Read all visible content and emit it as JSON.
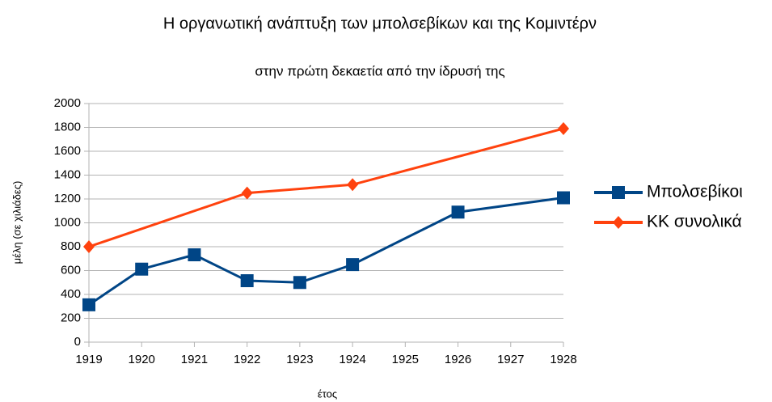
{
  "chart_data": {
    "type": "line",
    "title": "Η οργανωτική ανάπτυξη των μπολσεβίκων και της Κομιντέρν",
    "subtitle": "στην πρώτη δεκαετία από την ίδρυσή της",
    "x_label": "έτος",
    "y_label": "μέλη (σε χιλιάδες)",
    "xlim": [
      1919,
      1928
    ],
    "xticks": [
      1919,
      1920,
      1921,
      1922,
      1923,
      1924,
      1925,
      1926,
      1927,
      1928
    ],
    "ylim": [
      0,
      2000
    ],
    "yticks": [
      0,
      200,
      400,
      600,
      800,
      1000,
      1200,
      1400,
      1600,
      1800,
      2000
    ],
    "grid": true,
    "legend": "right",
    "series": [
      {
        "name": "Μπολσεβίκοι",
        "color": "#004586",
        "marker": "square",
        "x": [
          1919,
          1920,
          1921,
          1922,
          1923,
          1924,
          1926,
          1928
        ],
        "values": [
          313,
          612,
          732,
          515,
          500,
          650,
          1090,
          1210
        ]
      },
      {
        "name": "ΚΚ συνολικά",
        "color": "#ff420e",
        "marker": "diamond",
        "x": [
          1919,
          1922,
          1924,
          1928
        ],
        "values": [
          800,
          1250,
          1320,
          1790
        ]
      }
    ]
  }
}
